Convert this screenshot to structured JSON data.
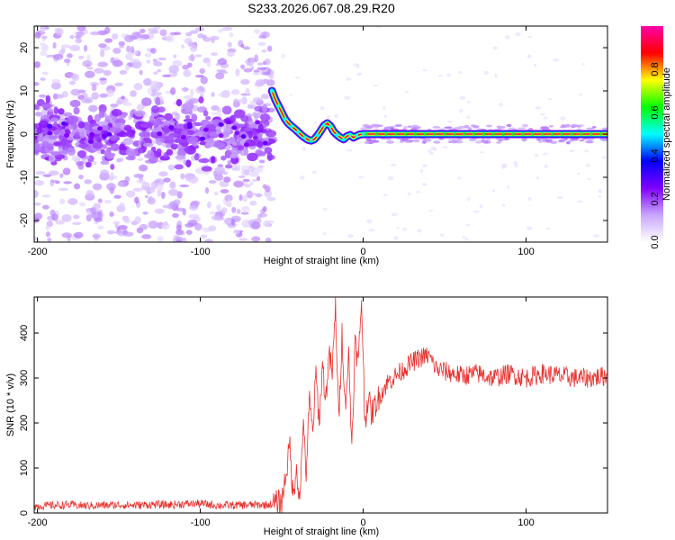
{
  "figure": {
    "title": "S233.2026.067.08.29.R20"
  },
  "colors": {
    "snr_line": "#e8302a",
    "frame": "#000000"
  },
  "chart_data": [
    {
      "type": "heatmap",
      "name": "spectrogram",
      "xlabel": "Height of straight line (km)",
      "ylabel": "Frequency (Hz)",
      "xlim": [
        -202,
        150
      ],
      "ylim": [
        -25,
        25
      ],
      "xticks": [
        -200,
        -100,
        0,
        100
      ],
      "yticks": [
        -20,
        -10,
        0,
        10,
        20
      ],
      "colorbar": {
        "label": "Normalized spectral amplitude",
        "range": [
          0,
          1
        ],
        "ticks": [
          0.0,
          0.2,
          0.4,
          0.6,
          0.8
        ],
        "colormap": [
          "#ffffff",
          "#c9a6ff",
          "#8000ff",
          "#0000ff",
          "#00ffff",
          "#00ff00",
          "#ffff00",
          "#ff0000",
          "#ff00aa"
        ]
      },
      "ridge": {
        "x": [
          -56,
          -54,
          -52,
          -50,
          -48,
          -46,
          -44,
          -42,
          -40,
          -38,
          -36,
          -34,
          -32,
          -30,
          -28,
          -26,
          -24,
          -22,
          -20,
          -18,
          -16,
          -14,
          -12,
          -10,
          -8,
          -6,
          -4,
          -2,
          0,
          10,
          50,
          100,
          150
        ],
        "y": [
          10,
          8,
          6.5,
          5,
          3.5,
          2.5,
          1.8,
          1.2,
          0.5,
          -0.2,
          -0.8,
          -1.3,
          -1.5,
          -1.2,
          -0.3,
          0.8,
          2,
          2.5,
          1.8,
          0.5,
          -0.2,
          -0.8,
          -1.2,
          -0.5,
          -0.2,
          -0.8,
          -0.4,
          -0.1,
          0,
          0,
          0,
          0,
          0
        ]
      }
    },
    {
      "type": "line",
      "name": "snr",
      "xlabel": "Height of straight line (km)",
      "ylabel": "SNR (10 * v/v)",
      "xlim": [
        -202,
        150
      ],
      "ylim": [
        0,
        480
      ],
      "xticks": [
        -200,
        -100,
        0,
        100
      ],
      "yticks": [
        0,
        100,
        200,
        300,
        400
      ],
      "series": [
        {
          "x": [
            -202,
            -190,
            -180,
            -170,
            -160,
            -150,
            -140,
            -130,
            -120,
            -110,
            -100,
            -90,
            -80,
            -70,
            -60,
            -55,
            -50,
            -47,
            -45,
            -43,
            -41,
            -39,
            -37,
            -35,
            -33,
            -31,
            -29,
            -27,
            -25,
            -23,
            -21,
            -19,
            -17,
            -15,
            -13,
            -11,
            -9,
            -7,
            -5,
            -3,
            -1,
            1,
            3,
            5,
            10,
            15,
            20,
            25,
            30,
            35,
            40,
            45,
            50,
            60,
            70,
            80,
            90,
            100,
            110,
            120,
            130,
            140,
            150
          ],
          "y": [
            15,
            17,
            18,
            16,
            17,
            18,
            17,
            19,
            18,
            20,
            21,
            17,
            17,
            18,
            18,
            20,
            25,
            100,
            150,
            30,
            110,
            15,
            200,
            90,
            250,
            180,
            310,
            200,
            330,
            250,
            350,
            310,
            460,
            200,
            400,
            240,
            350,
            150,
            380,
            330,
            480,
            200,
            260,
            220,
            260,
            290,
            305,
            320,
            335,
            345,
            350,
            320,
            315,
            305,
            310,
            300,
            310,
            300,
            310,
            305,
            300,
            300,
            305
          ]
        }
      ]
    }
  ]
}
